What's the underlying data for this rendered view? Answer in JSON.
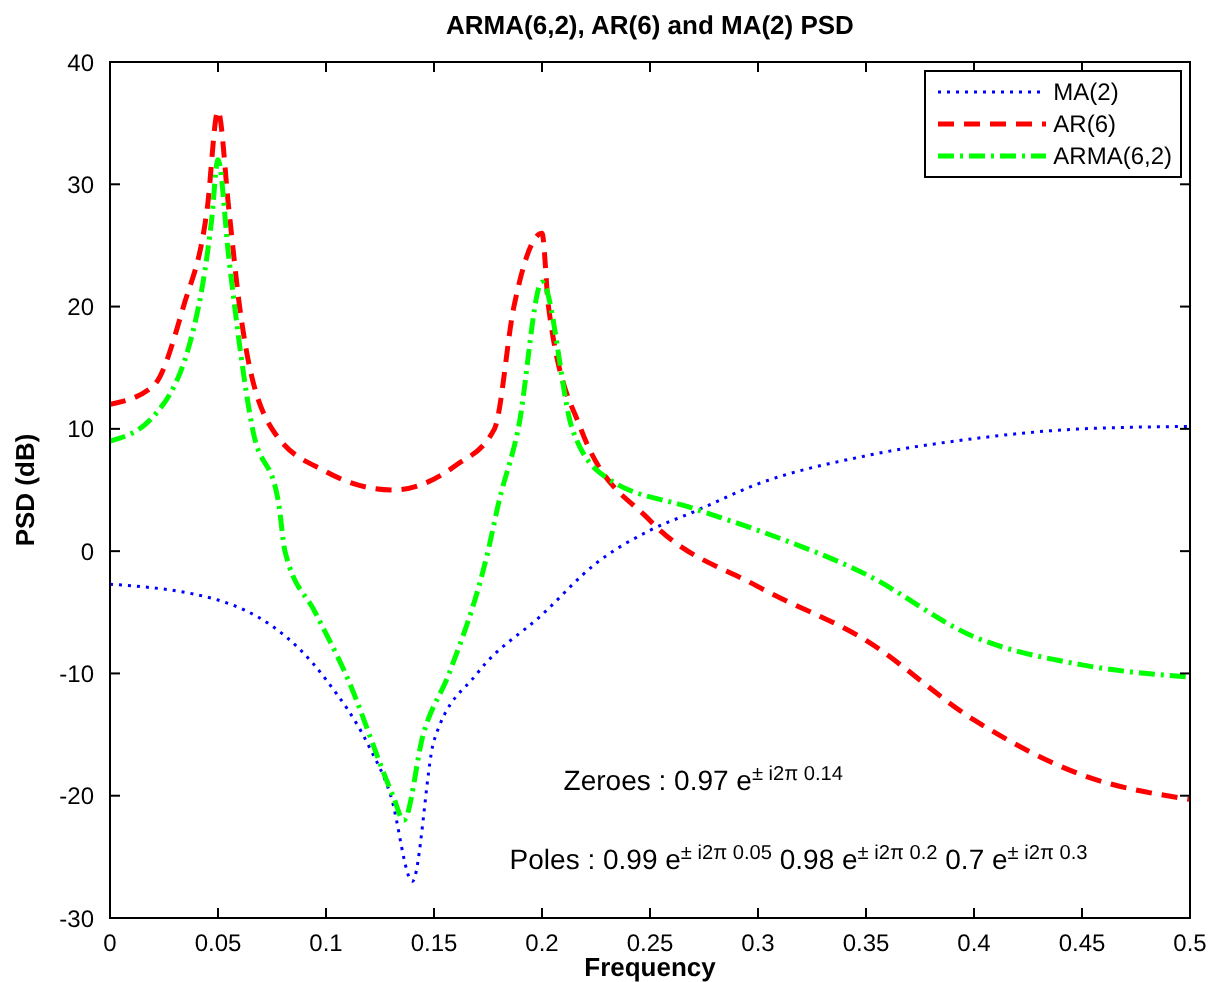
{
  "chart_data": {
    "type": "line",
    "title": "ARMA(6,2), AR(6) and MA(2) PSD",
    "xlabel": "Frequency",
    "ylabel": "PSD (dB)",
    "xlim": [
      0,
      0.5
    ],
    "xticks": [
      0,
      0.05,
      0.1,
      0.15,
      0.2,
      0.25,
      0.3,
      0.35,
      0.4,
      0.45,
      0.5
    ],
    "ylim": [
      -30,
      40
    ],
    "yticks": [
      -30,
      -20,
      -10,
      0,
      10,
      20,
      30,
      40
    ],
    "grid": false,
    "legend": "top right",
    "marker": "none",
    "series": [
      {
        "name": "MA(2)",
        "color": "#0000ff",
        "line_style": "dotted",
        "x": [
          0,
          0.05,
          0.1,
          0.12,
          0.13,
          0.14,
          0.15,
          0.17,
          0.2,
          0.225,
          0.25,
          0.27,
          0.3,
          0.35,
          0.4,
          0.45,
          0.5
        ],
        "values": [
          -2.7,
          -4,
          -10.5,
          -16,
          -20,
          -27,
          -15.5,
          -10,
          -5.2,
          -1,
          1.7,
          3.2,
          5.5,
          7.8,
          9.2,
          10,
          10.2
        ]
      },
      {
        "name": "AR(6)",
        "color": "#ff0000",
        "line_style": "dashed",
        "x": [
          0,
          0.02,
          0.034,
          0.045,
          0.05,
          0.055,
          0.06,
          0.075,
          0.1,
          0.131,
          0.16,
          0.178,
          0.187,
          0.2,
          0.203,
          0.218,
          0.25,
          0.3,
          0.35,
          0.4,
          0.45,
          0.5
        ],
        "values": [
          12,
          13.5,
          20,
          28,
          36,
          28,
          20,
          10,
          6.5,
          5,
          7,
          10,
          20,
          26,
          20,
          10,
          2.5,
          -2.9,
          -7.3,
          -13.8,
          -18.3,
          -20.3
        ]
      },
      {
        "name": "ARMA(6,2)",
        "color": "#00ff00",
        "line_style": "dashdot",
        "x": [
          0,
          0.02,
          0.041,
          0.047,
          0.05,
          0.055,
          0.066,
          0.078,
          0.081,
          0.095,
          0.109,
          0.131,
          0.136,
          0.145,
          0.157,
          0.175,
          0.18,
          0.189,
          0.2,
          0.214,
          0.23,
          0.27,
          0.3,
          0.35,
          0.4,
          0.45,
          0.5
        ],
        "values": [
          9,
          11,
          20,
          27,
          32,
          24,
          10,
          4,
          0,
          -5,
          -10,
          -20,
          -22,
          -15,
          -10,
          0,
          4,
          10,
          22,
          10,
          6,
          3.5,
          1.7,
          -1.9,
          -7,
          -9.3,
          -10.3
        ]
      }
    ],
    "annotations": [
      "Zeroes : 0.97 e$^{± i2π 0.14}$",
      "Poles : 0.99 e$^{± i2π 0.05}$ 0.98 e$^{± i2π 0.2}$ 0.7 e$^{± i2π 0.3}$"
    ]
  }
}
